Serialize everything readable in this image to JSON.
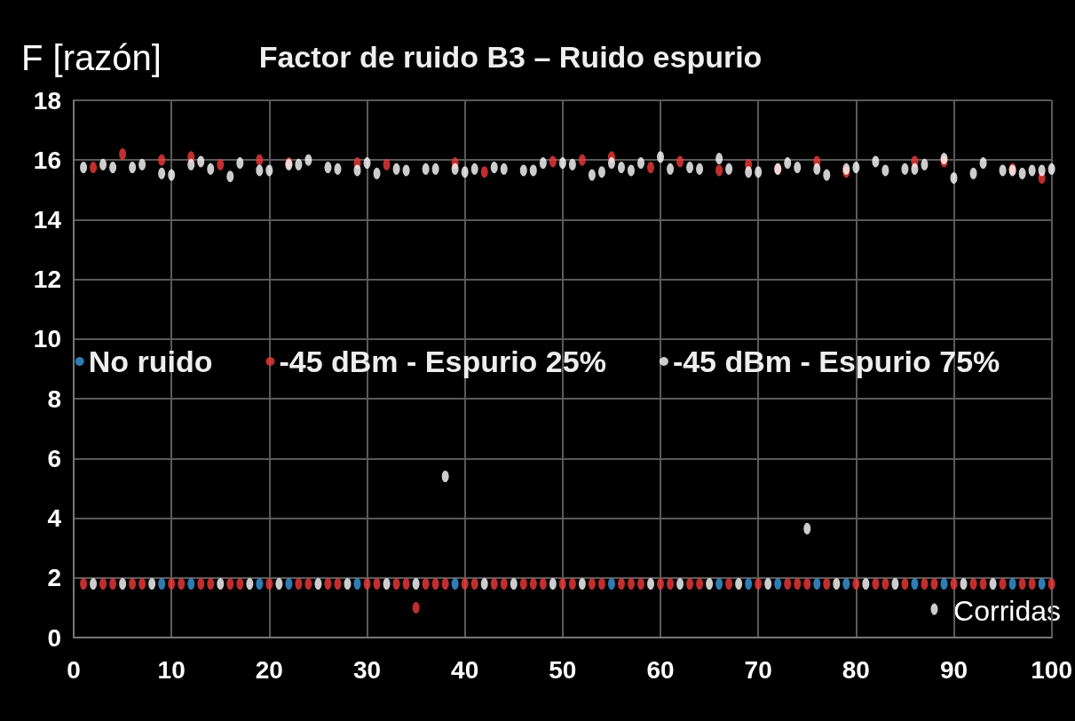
{
  "chart_data": {
    "type": "scatter",
    "title": "Factor de ruido B3 – Ruido espurio",
    "xlabel": "Corridas",
    "ylabel": "F [razón]",
    "x": [
      1,
      2,
      3,
      4,
      5,
      6,
      7,
      8,
      9,
      10,
      11,
      12,
      13,
      14,
      15,
      16,
      17,
      18,
      19,
      20,
      21,
      22,
      23,
      24,
      25,
      26,
      27,
      28,
      29,
      30,
      31,
      32,
      33,
      34,
      35,
      36,
      37,
      38,
      39,
      40,
      41,
      42,
      43,
      44,
      45,
      46,
      47,
      48,
      49,
      50,
      51,
      52,
      53,
      54,
      55,
      56,
      57,
      58,
      59,
      60,
      61,
      62,
      63,
      64,
      65,
      66,
      67,
      68,
      69,
      70,
      71,
      72,
      73,
      74,
      75,
      76,
      77,
      78,
      79,
      80,
      81,
      82,
      83,
      84,
      85,
      86,
      87,
      88,
      89,
      90,
      91,
      92,
      93,
      94,
      95,
      96,
      97,
      98,
      99,
      100
    ],
    "series": [
      {
        "name": "No ruido",
        "color": "#3a9be0",
        "x": [
          9,
          12,
          19,
          22,
          29,
          39,
          55,
          66,
          69,
          72,
          76,
          79,
          86,
          89,
          96,
          99
        ],
        "values": [
          1.8,
          1.8,
          1.8,
          1.8,
          1.8,
          1.8,
          1.8,
          1.8,
          1.8,
          1.8,
          1.8,
          1.8,
          1.8,
          1.8,
          1.8,
          1.8
        ]
      },
      {
        "name": "-45 dBm - Espurio 25%",
        "color": "#f03a3a",
        "values": [
          1.8,
          15.75,
          1.8,
          1.8,
          16.2,
          1.8,
          1.8,
          null,
          16.0,
          1.8,
          1.8,
          16.1,
          1.8,
          1.8,
          15.85,
          1.8,
          1.8,
          null,
          16.0,
          1.8,
          null,
          15.9,
          1.8,
          1.8,
          null,
          1.8,
          1.8,
          null,
          15.9,
          1.8,
          1.8,
          15.85,
          1.8,
          1.8,
          1.0,
          1.8,
          1.8,
          1.8,
          15.9,
          1.8,
          1.8,
          15.6,
          1.8,
          1.8,
          null,
          1.8,
          1.8,
          1.8,
          15.95,
          1.8,
          1.8,
          16.0,
          1.8,
          1.8,
          16.1,
          1.8,
          1.8,
          1.8,
          15.75,
          1.8,
          1.8,
          15.95,
          1.8,
          1.8,
          null,
          15.65,
          1.8,
          null,
          15.85,
          1.8,
          null,
          15.7,
          1.8,
          1.8,
          1.8,
          15.95,
          1.8,
          null,
          15.6,
          1.8,
          null,
          1.8,
          1.8,
          null,
          1.8,
          15.95,
          1.8,
          1.8,
          15.95,
          1.8,
          null,
          1.8,
          1.8,
          null,
          1.8,
          15.7,
          1.8,
          1.8,
          15.4,
          1.8
        ]
      },
      {
        "name": "-45 dBm - Espurio 75%",
        "color": "#ffffff",
        "values": [
          15.75,
          1.8,
          15.85,
          15.75,
          1.8,
          15.75,
          15.85,
          1.8,
          15.55,
          15.5,
          null,
          15.85,
          15.95,
          15.7,
          1.8,
          15.45,
          15.9,
          1.8,
          15.65,
          15.65,
          1.8,
          15.85,
          15.85,
          16.0,
          1.8,
          15.75,
          15.7,
          1.8,
          15.65,
          15.9,
          15.55,
          1.8,
          15.7,
          15.65,
          1.8,
          15.7,
          15.7,
          5.4,
          15.7,
          15.6,
          15.7,
          1.8,
          15.75,
          15.7,
          1.8,
          15.65,
          15.65,
          15.9,
          1.8,
          15.9,
          15.85,
          1.8,
          15.5,
          15.6,
          15.9,
          15.75,
          15.65,
          15.9,
          1.8,
          16.1,
          15.7,
          1.8,
          15.75,
          15.7,
          1.8,
          16.05,
          15.7,
          1.8,
          15.6,
          15.6,
          1.8,
          15.7,
          15.9,
          15.75,
          3.65,
          15.7,
          15.5,
          1.8,
          15.7,
          15.75,
          1.8,
          15.95,
          15.65,
          1.8,
          15.7,
          15.7,
          15.85,
          0.95,
          16.05,
          15.4,
          1.8,
          15.55,
          15.9,
          1.8,
          15.65,
          15.65,
          15.55,
          15.65,
          15.65,
          15.7
        ]
      }
    ],
    "xlim": [
      0,
      100
    ],
    "xticks": [
      0,
      10,
      20,
      30,
      40,
      50,
      60,
      70,
      80,
      90,
      100
    ],
    "ylim": [
      0,
      18
    ],
    "yticks": [
      0,
      2,
      4,
      6,
      8,
      10,
      12,
      14,
      16,
      18
    ],
    "grid": true,
    "legend": "center",
    "marker": "circle"
  }
}
